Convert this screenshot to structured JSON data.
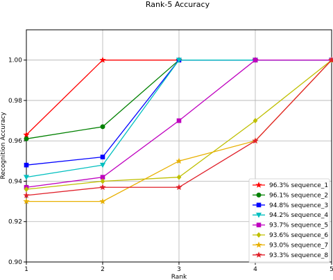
{
  "chart_data": {
    "type": "line",
    "title": "Rank-5 Accuracy",
    "xlabel": "Rank",
    "ylabel": "Recognition Accuracy",
    "x": [
      1,
      2,
      3,
      4,
      5
    ],
    "xlim": [
      1,
      5
    ],
    "ylim": [
      0.9,
      1.015
    ],
    "xticks": [
      "1",
      "2",
      "3",
      "4",
      "5"
    ],
    "yticks": [
      0.9,
      0.92,
      0.94,
      0.96,
      0.98,
      1.0
    ],
    "ytick_labels": [
      "0.90",
      "0.92",
      "0.94",
      "0.96",
      "0.98",
      "1.00"
    ],
    "grid": true,
    "legend_position": "bottom-right",
    "series": [
      {
        "name": "96.3% sequence_1",
        "color": "#ff0000",
        "marker": "star",
        "values": [
          0.963,
          1.0,
          1.0,
          1.0,
          1.0
        ]
      },
      {
        "name": "96.1% sequence_2",
        "color": "#008000",
        "marker": "circle",
        "values": [
          0.961,
          0.967,
          1.0,
          1.0,
          1.0
        ]
      },
      {
        "name": "94.8% sequence_3",
        "color": "#0000ff",
        "marker": "square",
        "values": [
          0.948,
          0.952,
          1.0,
          1.0,
          1.0
        ]
      },
      {
        "name": "94.2% sequence_4",
        "color": "#00bfbf",
        "marker": "triangle-down",
        "values": [
          0.942,
          0.948,
          1.0,
          1.0,
          1.0
        ]
      },
      {
        "name": "93.7% sequence_5",
        "color": "#bf00bf",
        "marker": "square",
        "values": [
          0.937,
          0.942,
          0.97,
          1.0,
          1.0
        ]
      },
      {
        "name": "93.6% sequence_6",
        "color": "#bfbf00",
        "marker": "diamond",
        "values": [
          0.936,
          0.94,
          0.942,
          0.97,
          1.0
        ]
      },
      {
        "name": "93.0% sequence_7",
        "color": "#e8b000",
        "marker": "star",
        "values": [
          0.93,
          0.93,
          0.95,
          0.96,
          1.0
        ]
      },
      {
        "name": "93.3% sequence_8",
        "color": "#e0202a",
        "marker": "star",
        "values": [
          0.933,
          0.937,
          0.937,
          0.96,
          1.0
        ]
      }
    ]
  }
}
